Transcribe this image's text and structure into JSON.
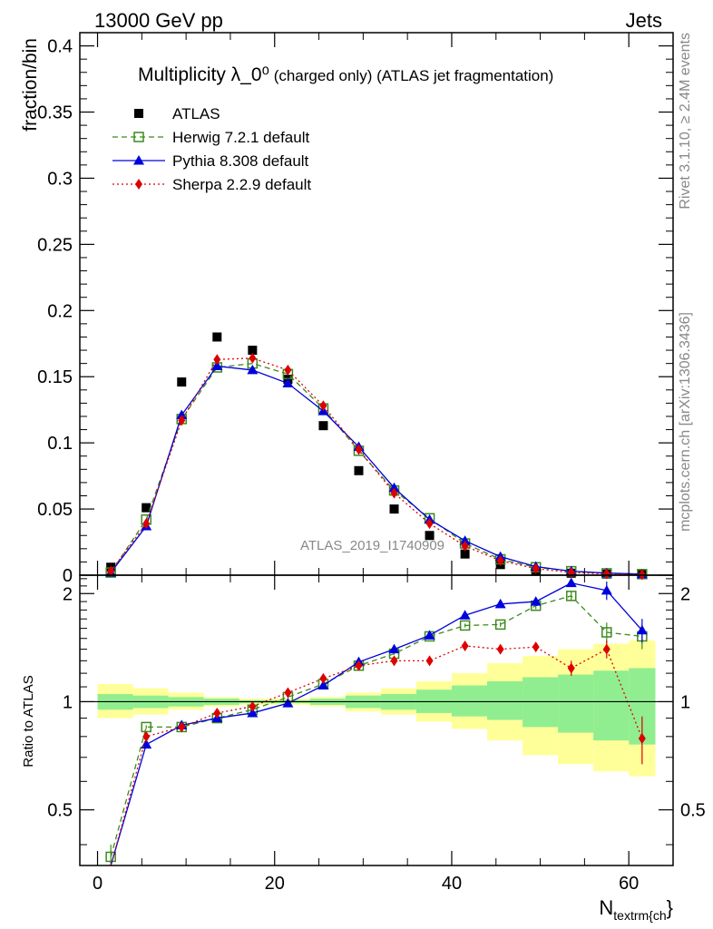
{
  "header": {
    "left": "13000 GeV pp",
    "right": "Jets"
  },
  "side_labels": {
    "rivet": "Rivet 3.1.10, ≥ 2.4M events",
    "mcplots": "mcplots.cern.ch [arXiv:1306.3436]"
  },
  "watermark": "ATLAS_2019_I1740909",
  "chart_data": [
    {
      "type": "scatter",
      "panel": "main",
      "title": "Multiplicity λ_0⁰",
      "title_suffix": " (charged only) (ATLAS jet fragmentation)",
      "ylabel": "fraction/bin",
      "xlabel": "N_textrm{ch}",
      "xlim": [
        -2,
        65
      ],
      "ylim": [
        0,
        0.41
      ],
      "xticks": [
        0,
        20,
        40,
        60
      ],
      "yticks": [
        0,
        0.05,
        0.1,
        0.15,
        0.2,
        0.25,
        0.3,
        0.35,
        0.4
      ],
      "ytick_labels": [
        "0",
        "0.05",
        "0.1",
        "0.15",
        "0.2",
        "0.25",
        "0.3",
        "0.35",
        "0.4"
      ],
      "legend_position": "top-left",
      "series": [
        {
          "name": "ATLAS",
          "marker": "square-filled",
          "color": "#000000",
          "x": [
            1.5,
            5.5,
            9.5,
            13.5,
            17.5,
            21.5,
            25.5,
            29.5,
            33.5,
            37.5,
            41.5,
            45.5,
            49.5,
            53.5,
            57.5,
            61.5
          ],
          "values": [
            0.006,
            0.051,
            0.146,
            0.18,
            0.17,
            0.148,
            0.113,
            0.079,
            0.05,
            0.03,
            0.016,
            0.008,
            0.003,
            0.0015,
            0.0008,
            0.0005
          ]
        },
        {
          "name": "Herwig 7.2.1 default",
          "marker": "square-open",
          "line": "dashed",
          "color": "#3d8a1e",
          "x": [
            1.5,
            5.5,
            9.5,
            13.5,
            17.5,
            21.5,
            25.5,
            29.5,
            33.5,
            37.5,
            41.5,
            45.5,
            49.5,
            53.5,
            57.5,
            61.5
          ],
          "values": [
            0.002,
            0.042,
            0.118,
            0.157,
            0.16,
            0.152,
            0.126,
            0.094,
            0.064,
            0.043,
            0.024,
            0.012,
            0.006,
            0.003,
            0.0014,
            0.0008
          ]
        },
        {
          "name": "Pythia 8.308 default",
          "marker": "triangle-filled",
          "line": "solid",
          "color": "#0000dd",
          "x": [
            1.5,
            5.5,
            9.5,
            13.5,
            17.5,
            21.5,
            25.5,
            29.5,
            33.5,
            37.5,
            41.5,
            45.5,
            49.5,
            53.5,
            57.5,
            61.5
          ],
          "values": [
            0.002,
            0.037,
            0.121,
            0.158,
            0.155,
            0.145,
            0.124,
            0.097,
            0.066,
            0.042,
            0.026,
            0.014,
            0.0065,
            0.003,
            0.0016,
            0.0008
          ]
        },
        {
          "name": "Sherpa 2.2.9 default",
          "marker": "diamond-filled",
          "line": "dotted",
          "color": "#dd0000",
          "x": [
            1.5,
            5.5,
            9.5,
            13.5,
            17.5,
            21.5,
            25.5,
            29.5,
            33.5,
            37.5,
            41.5,
            45.5,
            49.5,
            53.5,
            57.5,
            61.5
          ],
          "values": [
            0.003,
            0.039,
            0.117,
            0.163,
            0.164,
            0.155,
            0.128,
            0.095,
            0.062,
            0.039,
            0.022,
            0.011,
            0.005,
            0.002,
            0.001,
            0.0004
          ]
        }
      ]
    },
    {
      "type": "scatter",
      "panel": "ratio",
      "ylabel": "Ratio to ATLAS",
      "xlim": [
        -2,
        65
      ],
      "ylim": [
        0.35,
        2.25
      ],
      "xticks": [
        0,
        20,
        40,
        60
      ],
      "yticks": [
        0.5,
        1,
        2
      ],
      "ytick_labels": [
        "0.5",
        "1",
        "2"
      ],
      "x_edges": [
        0,
        4,
        8,
        12,
        16,
        20,
        24,
        28,
        32,
        36,
        40,
        44,
        48,
        52,
        56,
        60,
        63
      ],
      "band_inner": {
        "color": "#90ee90",
        "lower": [
          0.95,
          0.96,
          0.97,
          0.98,
          0.99,
          0.99,
          0.98,
          0.96,
          0.95,
          0.93,
          0.91,
          0.89,
          0.85,
          0.82,
          0.78,
          0.76
        ],
        "upper": [
          1.05,
          1.04,
          1.03,
          1.02,
          1.01,
          1.01,
          1.02,
          1.04,
          1.05,
          1.08,
          1.11,
          1.14,
          1.17,
          1.19,
          1.22,
          1.24
        ]
      },
      "band_outer": {
        "color": "#ffff99",
        "lower": [
          0.9,
          0.92,
          0.95,
          0.97,
          0.98,
          0.98,
          0.97,
          0.94,
          0.92,
          0.88,
          0.84,
          0.78,
          0.71,
          0.67,
          0.64,
          0.62
        ],
        "upper": [
          1.12,
          1.09,
          1.06,
          1.03,
          1.02,
          1.02,
          1.03,
          1.06,
          1.09,
          1.14,
          1.2,
          1.28,
          1.34,
          1.4,
          1.45,
          1.48
        ]
      },
      "series": [
        {
          "name": "Herwig 7.2.1 default",
          "color": "#3d8a1e",
          "x": [
            1.5,
            5.5,
            9.5,
            13.5,
            17.5,
            21.5,
            25.5,
            29.5,
            33.5,
            37.5,
            41.5,
            45.5,
            49.5,
            53.5,
            57.5,
            61.5
          ],
          "values": [
            0.37,
            0.85,
            0.85,
            0.9,
            0.95,
            1.03,
            1.12,
            1.26,
            1.36,
            1.52,
            1.63,
            1.64,
            1.85,
            1.97,
            1.56,
            1.52
          ],
          "errors": [
            0.03,
            0.01,
            0.005,
            0.005,
            0.005,
            0.005,
            0.005,
            0.01,
            0.01,
            0.015,
            0.02,
            0.025,
            0.04,
            0.06,
            0.1,
            0.12
          ]
        },
        {
          "name": "Pythia 8.308 default",
          "color": "#0000dd",
          "x": [
            1.5,
            5.5,
            9.5,
            13.5,
            17.5,
            21.5,
            25.5,
            29.5,
            33.5,
            37.5,
            41.5,
            45.5,
            49.5,
            53.5,
            57.5,
            61.5
          ],
          "values": [
            0.3,
            0.76,
            0.86,
            0.9,
            0.93,
            0.99,
            1.11,
            1.29,
            1.4,
            1.53,
            1.74,
            1.87,
            1.9,
            2.14,
            2.04,
            1.58
          ],
          "errors": [
            0.03,
            0.01,
            0.005,
            0.005,
            0.005,
            0.005,
            0.005,
            0.01,
            0.01,
            0.015,
            0.02,
            0.025,
            0.04,
            0.05,
            0.12,
            0.12
          ]
        },
        {
          "name": "Sherpa 2.2.9 default",
          "color": "#dd0000",
          "x": [
            1.5,
            5.5,
            9.5,
            13.5,
            17.5,
            21.5,
            25.5,
            29.5,
            33.5,
            37.5,
            41.5,
            45.5,
            49.5,
            53.5,
            57.5,
            61.5
          ],
          "values": [
            0.3,
            0.8,
            0.85,
            0.93,
            0.97,
            1.06,
            1.16,
            1.26,
            1.3,
            1.3,
            1.43,
            1.4,
            1.42,
            1.24,
            1.4,
            0.79
          ],
          "errors": [
            0.03,
            0.01,
            0.005,
            0.005,
            0.005,
            0.005,
            0.005,
            0.01,
            0.01,
            0.015,
            0.02,
            0.025,
            0.04,
            0.06,
            0.08,
            0.12
          ]
        }
      ]
    }
  ]
}
